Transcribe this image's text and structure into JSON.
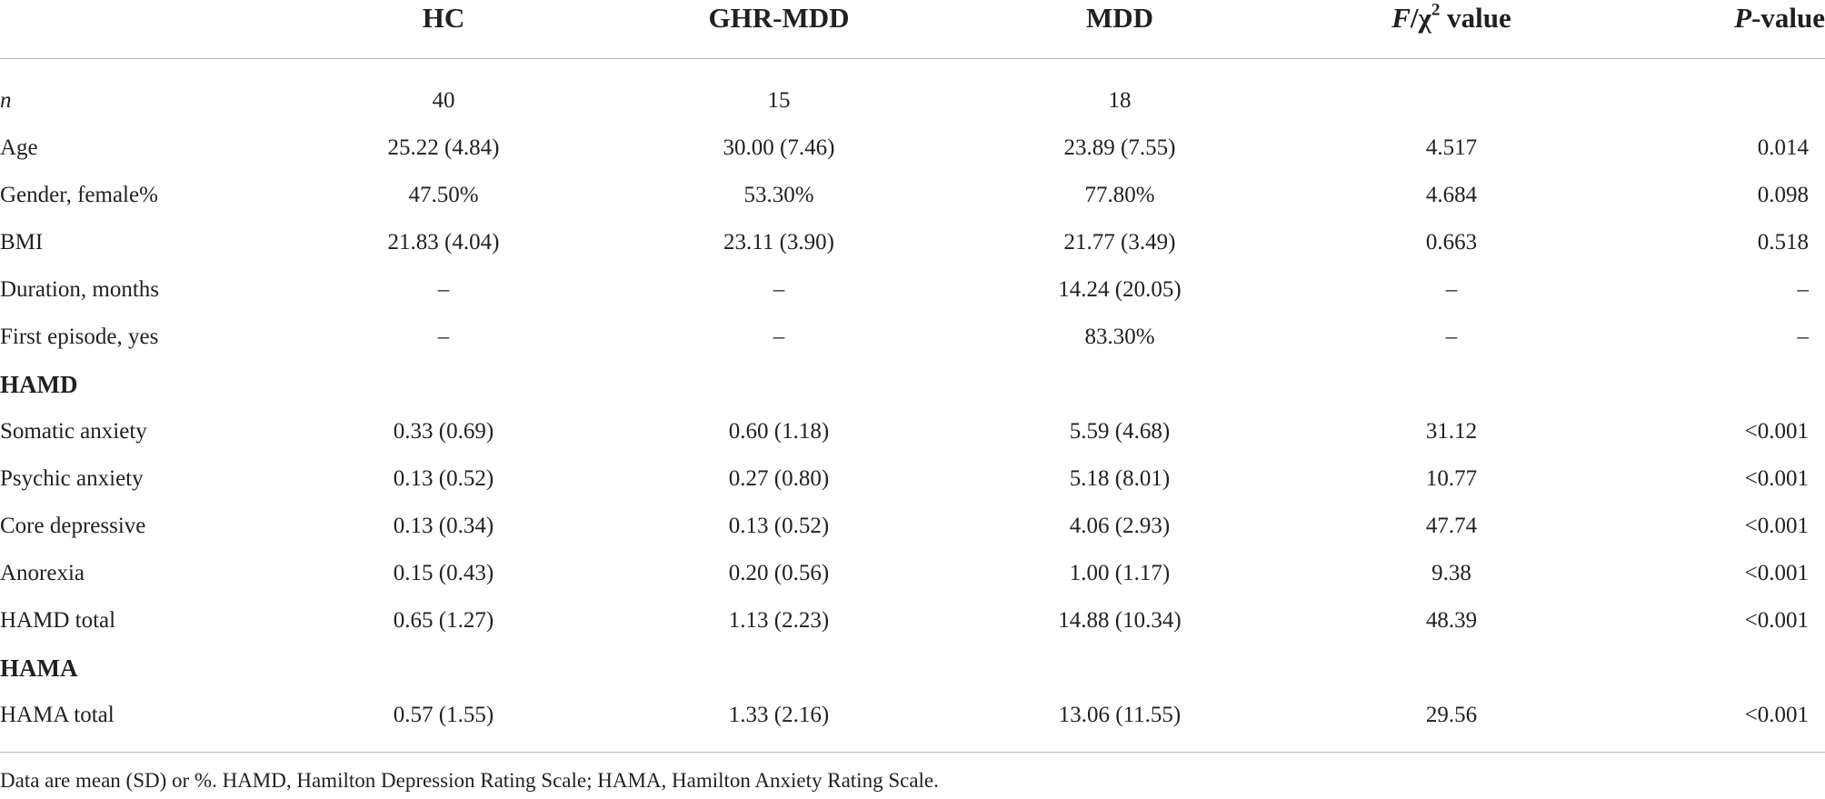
{
  "header": {
    "col1": "HC",
    "col2": "GHR-MDD",
    "col3": "MDD",
    "col4_italic": "F",
    "col4_mid": "/χ",
    "col4_sup": "2",
    "col4_tail": " value",
    "col5_italic": "P",
    "col5_tail": "-value"
  },
  "rows": [
    {
      "label": "n",
      "hc": "40",
      "ghr": "15",
      "mdd": "18",
      "stat": "",
      "p": ""
    },
    {
      "label": "Age",
      "hc": "25.22 (4.84)",
      "ghr": "30.00 (7.46)",
      "mdd": "23.89 (7.55)",
      "stat": "4.517",
      "p": "0.014"
    },
    {
      "label": "Gender, female%",
      "hc": "47.50%",
      "ghr": "53.30%",
      "mdd": "77.80%",
      "stat": "4.684",
      "p": "0.098"
    },
    {
      "label": "BMI",
      "hc": "21.83 (4.04)",
      "ghr": "23.11 (3.90)",
      "mdd": "21.77 (3.49)",
      "stat": "0.663",
      "p": "0.518"
    },
    {
      "label": "Duration, months",
      "hc": "–",
      "ghr": "–",
      "mdd": "14.24 (20.05)",
      "stat": "–",
      "p": "–"
    },
    {
      "label": "First episode, yes",
      "hc": "–",
      "ghr": "–",
      "mdd": "83.30%",
      "stat": "–",
      "p": "–"
    },
    {
      "section": "HAMD"
    },
    {
      "label": "Somatic anxiety",
      "hc": "0.33 (0.69)",
      "ghr": "0.60 (1.18)",
      "mdd": "5.59 (4.68)",
      "stat": "31.12",
      "p": "<0.001"
    },
    {
      "label": "Psychic anxiety",
      "hc": "0.13 (0.52)",
      "ghr": "0.27 (0.80)",
      "mdd": "5.18 (8.01)",
      "stat": "10.77",
      "p": "<0.001"
    },
    {
      "label": "Core depressive",
      "hc": "0.13 (0.34)",
      "ghr": "0.13 (0.52)",
      "mdd": "4.06 (2.93)",
      "stat": "47.74",
      "p": "<0.001"
    },
    {
      "label": "Anorexia",
      "hc": "0.15 (0.43)",
      "ghr": "0.20 (0.56)",
      "mdd": "1.00 (1.17)",
      "stat": "9.38",
      "p": "<0.001"
    },
    {
      "label": "HAMD total",
      "hc": "0.65 (1.27)",
      "ghr": "1.13 (2.23)",
      "mdd": "14.88 (10.34)",
      "stat": "48.39",
      "p": "<0.001"
    },
    {
      "section": "HAMA"
    },
    {
      "label": "HAMA total",
      "hc": "0.57 (1.55)",
      "ghr": "1.33 (2.16)",
      "mdd": "13.06 (11.55)",
      "stat": "29.56",
      "p": "<0.001"
    }
  ],
  "footnote": "Data are mean (SD) or %. HAMD, Hamilton Depression Rating Scale; HAMA, Hamilton Anxiety Rating Scale."
}
